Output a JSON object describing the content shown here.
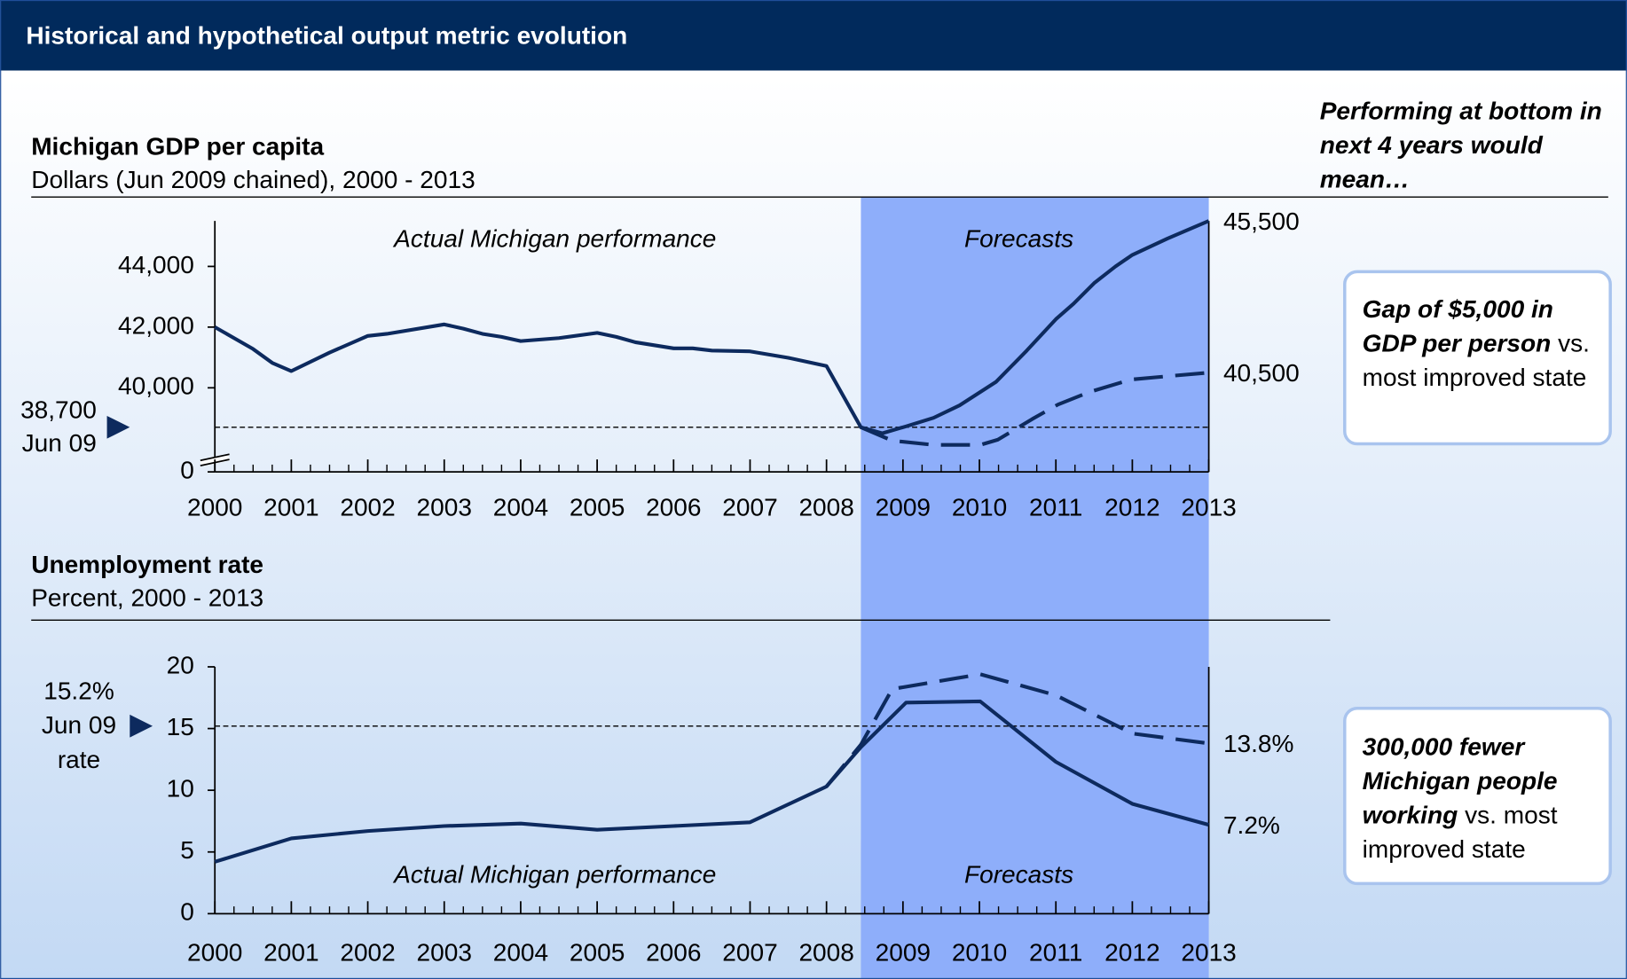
{
  "header": {
    "title": "Historical and hypothetical output metric evolution"
  },
  "side_heading": "Performing at bottom in next 4 years would mean…",
  "callouts": [
    {
      "emphasis": "Gap of $5,000 in GDP per person",
      "text": "vs. most improved state"
    },
    {
      "emphasis": "300,000 fewer Michigan people working",
      "text": "vs. most improved state"
    }
  ],
  "chart_data": [
    {
      "type": "line",
      "title": "Michigan GDP per capita",
      "subtitle": "Dollars (Jun 2009 chained), 2000 - 2013",
      "xlim": [
        2000,
        2013
      ],
      "xticks": [
        2000,
        2001,
        2002,
        2003,
        2004,
        2005,
        2006,
        2007,
        2008,
        2009,
        2010,
        2011,
        2012,
        2013
      ],
      "xminor": 4,
      "ylim": [
        0,
        45500
      ],
      "axis_break": [
        0,
        37230
      ],
      "yticks": [
        0,
        {
          "value": 40000,
          "label": "40,000"
        },
        {
          "value": 42000,
          "label": "42,000"
        },
        {
          "value": 44000,
          "label": "44,000"
        }
      ],
      "shade": [
        2008.45,
        2013
      ],
      "shade_color": "#8eaefa",
      "annotations": [
        "Actual Michigan performance",
        "Forecasts"
      ],
      "reference": {
        "value": 38700,
        "labels": [
          "38,700",
          "Jun 09"
        ]
      },
      "series": [
        {
          "style": "solid",
          "color": "#0d2a5e",
          "x": [
            2000,
            2000.5,
            2000.75,
            2001,
            2001.5,
            2002,
            2002.25,
            2003,
            2003.25,
            2003.5,
            2003.75,
            2004,
            2004.5,
            2005,
            2005.25,
            2005.5,
            2006,
            2006.25,
            2006.5,
            2007,
            2007.5,
            2008,
            2008.45,
            2008.73,
            2009.04,
            2009.4,
            2009.74,
            2010.22,
            2010.62,
            2011,
            2011.23,
            2011.5,
            2011.78,
            2012,
            2012.46,
            2013
          ],
          "values": [
            42000,
            41280,
            40820,
            40550,
            41160,
            41710,
            41780,
            42090,
            41950,
            41780,
            41680,
            41540,
            41640,
            41810,
            41680,
            41500,
            41300,
            41300,
            41230,
            41200,
            40990,
            40720,
            38700,
            38500,
            38730,
            39010,
            39420,
            40200,
            41230,
            42260,
            42770,
            43450,
            44000,
            44380,
            44920,
            45500
          ],
          "value_labels": [
            null,
            null,
            null,
            null,
            null,
            null,
            null,
            null,
            null,
            null,
            null,
            null,
            null,
            null,
            null,
            null,
            null,
            null,
            null,
            null,
            null,
            null,
            null,
            null,
            null,
            null,
            null,
            null,
            null,
            null,
            null,
            null,
            null,
            null,
            null,
            "45,500"
          ]
        },
        {
          "style": "dashed",
          "color": "#0d2a5e",
          "x": [
            2008.45,
            2008.86,
            2009.4,
            2010.01,
            2010.24,
            2010.69,
            2011.03,
            2011.44,
            2011.98,
            2012.46,
            2013
          ],
          "values": [
            38700,
            38260,
            38120,
            38120,
            38290,
            38970,
            39450,
            39860,
            40270,
            40380,
            40500
          ],
          "value_labels": [
            null,
            null,
            null,
            null,
            null,
            null,
            null,
            null,
            null,
            null,
            "40,500"
          ]
        }
      ]
    },
    {
      "type": "line",
      "title": "Unemployment rate",
      "subtitle": "Percent, 2000 - 2013",
      "xlim": [
        2000,
        2013
      ],
      "xticks": [
        2000,
        2001,
        2002,
        2003,
        2004,
        2005,
        2006,
        2007,
        2008,
        2009,
        2010,
        2011,
        2012,
        2013
      ],
      "xminor": 4,
      "ylim": [
        0,
        20
      ],
      "yticks": [
        0,
        5,
        10,
        15,
        20
      ],
      "shade": [
        2008.45,
        2013
      ],
      "shade_color": "#8eaefa",
      "annotations": [
        "Actual Michigan performance",
        "Forecasts"
      ],
      "reference": {
        "value": 15.2,
        "labels": [
          "15.2%",
          "Jun 09",
          "rate"
        ]
      },
      "series": [
        {
          "style": "solid",
          "color": "#0d2a5e",
          "x": [
            2000,
            2001,
            2002,
            2003,
            2004,
            2005,
            2006,
            2007,
            2008,
            2008.45,
            2009.04,
            2010.01,
            2011,
            2012,
            2013
          ],
          "values": [
            4.2,
            6.1,
            6.7,
            7.1,
            7.3,
            6.8,
            7.1,
            7.4,
            10.3,
            13.5,
            17.1,
            17.2,
            12.3,
            8.9,
            7.2
          ],
          "value_labels": [
            null,
            null,
            null,
            null,
            null,
            null,
            null,
            null,
            null,
            null,
            null,
            null,
            null,
            null,
            "7.2%"
          ]
        },
        {
          "style": "dashed",
          "color": "#0d2a5e",
          "x": [
            2008,
            2008.45,
            2008.86,
            2010.01,
            2011,
            2012,
            2013
          ],
          "values": [
            10.3,
            13.7,
            18.2,
            19.4,
            17.7,
            14.6,
            13.8
          ],
          "value_labels": [
            null,
            null,
            null,
            null,
            null,
            null,
            "13.8%"
          ]
        }
      ]
    }
  ]
}
